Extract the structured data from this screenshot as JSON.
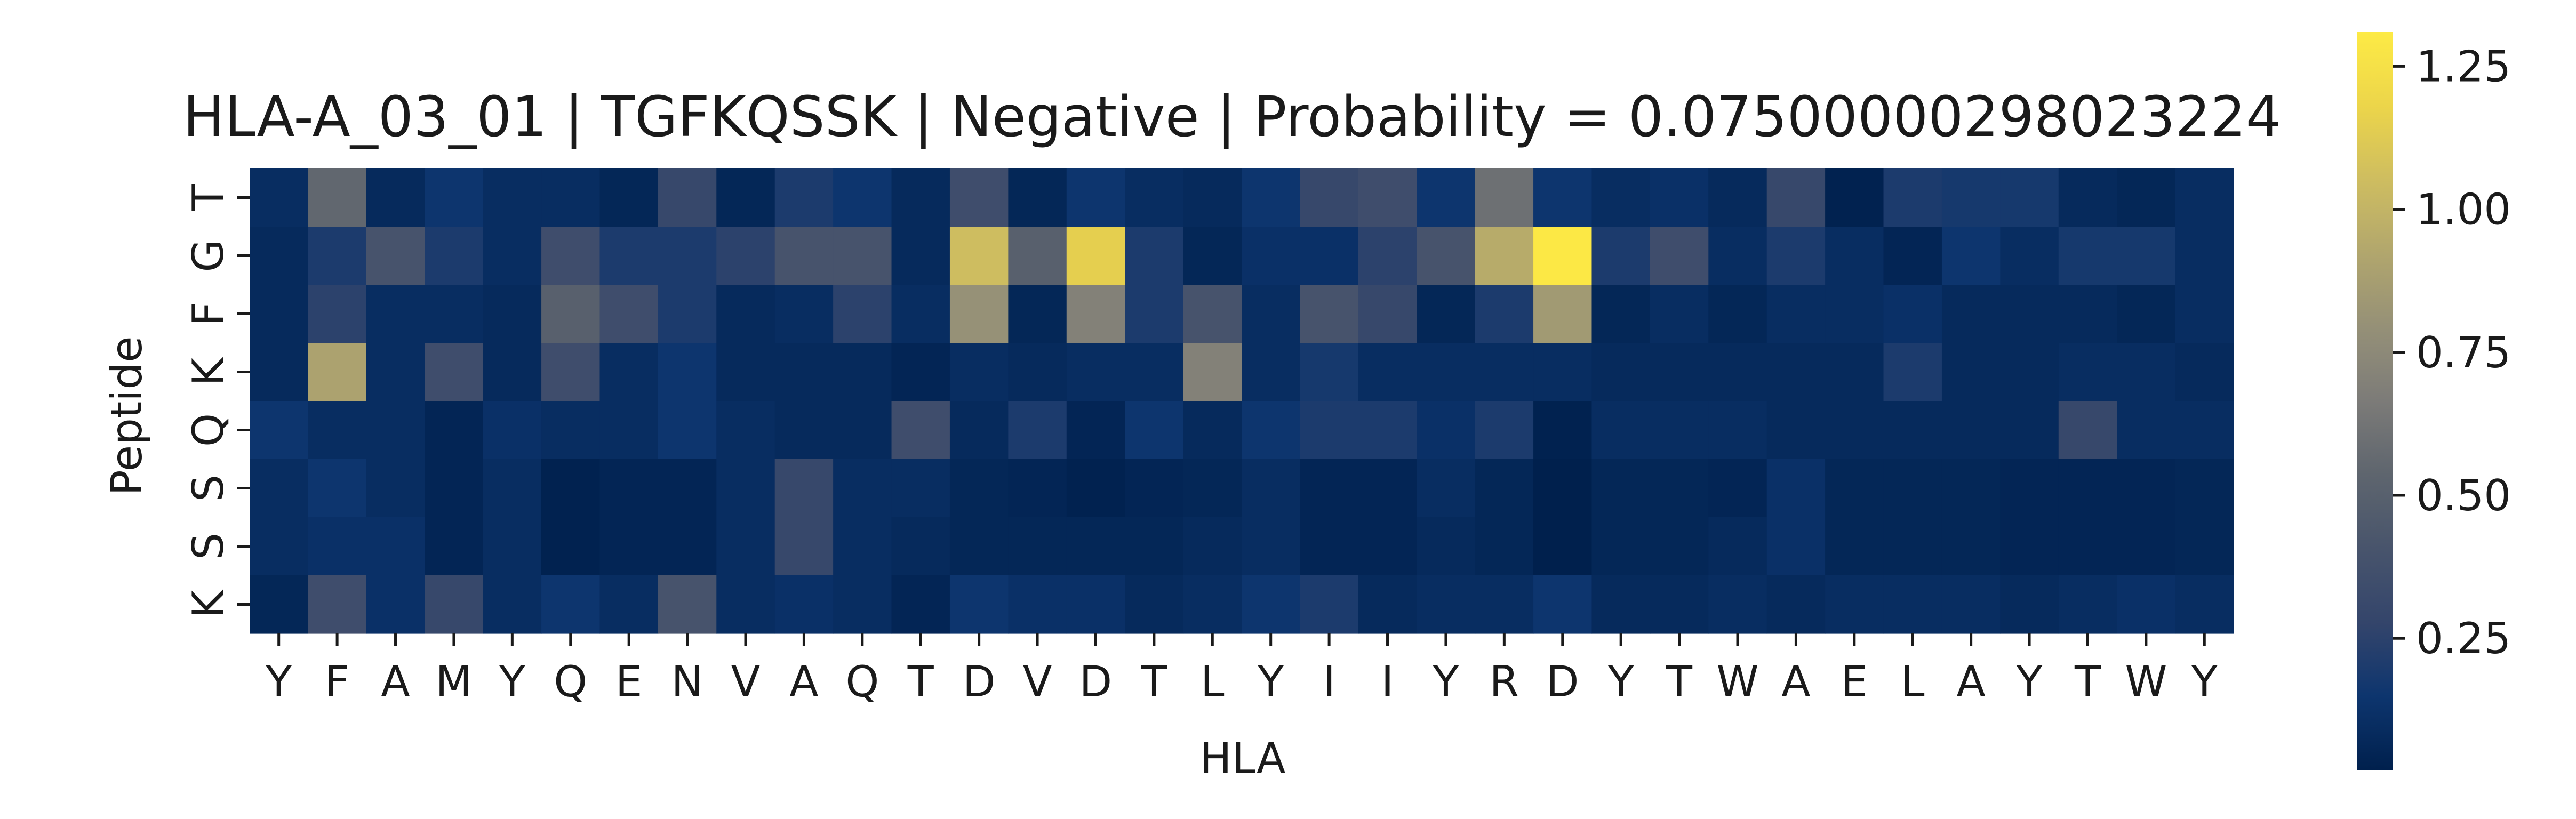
{
  "chart_data": {
    "type": "heatmap",
    "title": "HLA-A_03_01 | TGFKQSSK | Negative | Probability = 0.07500000298023224",
    "xlabel": "HLA",
    "ylabel": "Peptide",
    "x_categories": [
      "Y",
      "F",
      "A",
      "M",
      "Y",
      "Q",
      "E",
      "N",
      "V",
      "A",
      "Q",
      "T",
      "D",
      "V",
      "D",
      "T",
      "L",
      "Y",
      "I",
      "I",
      "Y",
      "R",
      "D",
      "Y",
      "T",
      "W",
      "A",
      "E",
      "L",
      "A",
      "Y",
      "T",
      "W",
      "Y"
    ],
    "y_categories": [
      "T",
      "G",
      "F",
      "K",
      "Q",
      "S",
      "S",
      "K"
    ],
    "values": [
      [
        0.1,
        0.55,
        0.08,
        0.15,
        0.1,
        0.1,
        0.06,
        0.3,
        0.06,
        0.2,
        0.15,
        0.08,
        0.35,
        0.06,
        0.15,
        0.1,
        0.08,
        0.15,
        0.3,
        0.35,
        0.15,
        0.6,
        0.15,
        0.1,
        0.12,
        0.08,
        0.3,
        0.03,
        0.2,
        0.18,
        0.18,
        0.08,
        0.06,
        0.1
      ],
      [
        0.08,
        0.2,
        0.4,
        0.2,
        0.1,
        0.35,
        0.2,
        0.2,
        0.25,
        0.4,
        0.4,
        0.08,
        1.05,
        0.5,
        1.15,
        0.2,
        0.06,
        0.12,
        0.12,
        0.25,
        0.4,
        0.95,
        1.3,
        0.2,
        0.35,
        0.1,
        0.2,
        0.1,
        0.05,
        0.15,
        0.1,
        0.18,
        0.18,
        0.1
      ],
      [
        0.08,
        0.25,
        0.1,
        0.1,
        0.08,
        0.5,
        0.35,
        0.2,
        0.08,
        0.1,
        0.25,
        0.1,
        0.8,
        0.06,
        0.7,
        0.2,
        0.4,
        0.1,
        0.4,
        0.3,
        0.06,
        0.2,
        0.85,
        0.06,
        0.1,
        0.06,
        0.1,
        0.1,
        0.12,
        0.08,
        0.08,
        0.08,
        0.06,
        0.1
      ],
      [
        0.08,
        0.9,
        0.1,
        0.35,
        0.08,
        0.35,
        0.1,
        0.15,
        0.08,
        0.08,
        0.08,
        0.05,
        0.1,
        0.08,
        0.1,
        0.1,
        0.7,
        0.1,
        0.18,
        0.1,
        0.1,
        0.1,
        0.1,
        0.08,
        0.08,
        0.08,
        0.08,
        0.08,
        0.2,
        0.08,
        0.08,
        0.1,
        0.1,
        0.08
      ],
      [
        0.15,
        0.1,
        0.1,
        0.05,
        0.12,
        0.1,
        0.1,
        0.15,
        0.1,
        0.08,
        0.08,
        0.35,
        0.08,
        0.2,
        0.05,
        0.15,
        0.08,
        0.15,
        0.2,
        0.2,
        0.12,
        0.2,
        0.03,
        0.1,
        0.1,
        0.1,
        0.08,
        0.08,
        0.08,
        0.08,
        0.08,
        0.3,
        0.1,
        0.1
      ],
      [
        0.1,
        0.15,
        0.1,
        0.05,
        0.1,
        0.03,
        0.05,
        0.05,
        0.1,
        0.3,
        0.1,
        0.1,
        0.06,
        0.05,
        0.03,
        0.05,
        0.06,
        0.1,
        0.05,
        0.05,
        0.1,
        0.06,
        0.02,
        0.06,
        0.06,
        0.05,
        0.12,
        0.06,
        0.06,
        0.06,
        0.05,
        0.05,
        0.05,
        0.06
      ],
      [
        0.1,
        0.12,
        0.12,
        0.05,
        0.1,
        0.03,
        0.05,
        0.05,
        0.1,
        0.3,
        0.1,
        0.08,
        0.06,
        0.06,
        0.06,
        0.06,
        0.08,
        0.1,
        0.05,
        0.05,
        0.08,
        0.06,
        0.02,
        0.06,
        0.06,
        0.08,
        0.12,
        0.06,
        0.06,
        0.06,
        0.05,
        0.05,
        0.05,
        0.06
      ],
      [
        0.06,
        0.35,
        0.12,
        0.3,
        0.1,
        0.15,
        0.1,
        0.4,
        0.1,
        0.12,
        0.1,
        0.05,
        0.15,
        0.12,
        0.12,
        0.08,
        0.1,
        0.15,
        0.2,
        0.08,
        0.1,
        0.1,
        0.15,
        0.08,
        0.08,
        0.1,
        0.08,
        0.1,
        0.1,
        0.1,
        0.08,
        0.1,
        0.12,
        0.1
      ]
    ],
    "colormap": "cividis",
    "vmin": 0.02,
    "vmax": 1.31,
    "colorbar_ticks": [
      0.25,
      0.5,
      0.75,
      1.0,
      1.25
    ],
    "colorbar_tick_labels": [
      "0.25",
      "0.50",
      "0.75",
      "1.00",
      "1.25"
    ]
  }
}
